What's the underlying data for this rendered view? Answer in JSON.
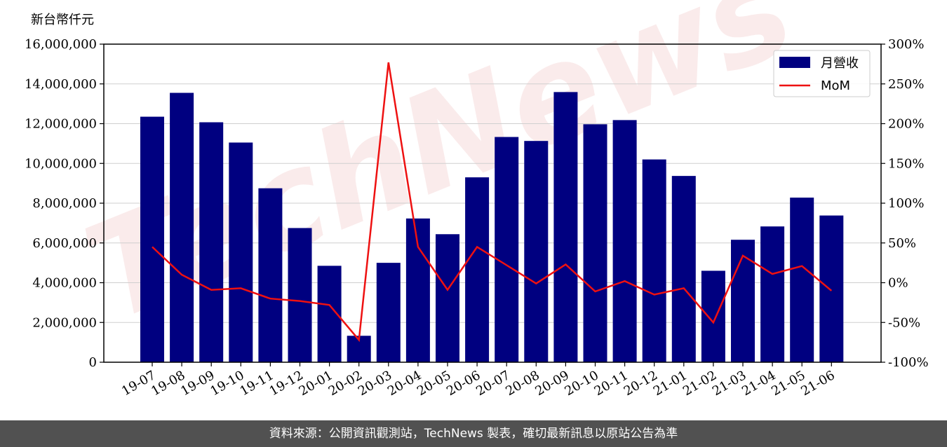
{
  "unit_label": "新台幣仟元",
  "footer_text": "資料來源：公開資訊觀測站，TechNews 製表，確切最新訊息以原站公告為準",
  "watermark_text": "TechNews",
  "chart_data": {
    "type": "bar",
    "title": "",
    "xlabel": "",
    "ylabel": "新台幣仟元",
    "categories": [
      "19-07",
      "19-08",
      "19-09",
      "19-10",
      "19-11",
      "19-12",
      "20-01",
      "20-02",
      "20-03",
      "20-04",
      "20-05",
      "20-06",
      "20-07",
      "20-08",
      "20-09",
      "20-10",
      "20-11",
      "20-12",
      "21-01",
      "21-02",
      "21-03",
      "21-04",
      "21-05",
      "21-06"
    ],
    "series": [
      {
        "name": "月營收",
        "kind": "bar",
        "axis": "left",
        "color": "#000080",
        "values": [
          12350000,
          13550000,
          12070000,
          11050000,
          8750000,
          6750000,
          4850000,
          1330000,
          5000000,
          7230000,
          6440000,
          9300000,
          11330000,
          11130000,
          13590000,
          11970000,
          12180000,
          10200000,
          9370000,
          4600000,
          6160000,
          6830000,
          8280000,
          7380000
        ]
      },
      {
        "name": "MoM",
        "kind": "line",
        "axis": "right",
        "color": "#ee1111",
        "values": [
          45,
          10,
          -9,
          -7,
          -20,
          -23,
          -28,
          -72,
          277,
          45,
          -9,
          45,
          22,
          -1,
          23,
          -11,
          2,
          -15,
          -7,
          -50,
          34,
          11,
          21,
          -10
        ]
      }
    ],
    "left_axis": {
      "ylim": [
        0,
        16000000
      ],
      "ticks": [
        "0",
        "2,000,000",
        "4,000,000",
        "6,000,000",
        "8,000,000",
        "10,000,000",
        "12,000,000",
        "14,000,000",
        "16,000,000"
      ]
    },
    "right_axis": {
      "ylim": [
        -100,
        300
      ],
      "ticks": [
        "-100%",
        "-50%",
        "0%",
        "50%",
        "100%",
        "150%",
        "200%",
        "250%",
        "300%"
      ]
    },
    "grid": true,
    "legend_position": "top-right"
  }
}
